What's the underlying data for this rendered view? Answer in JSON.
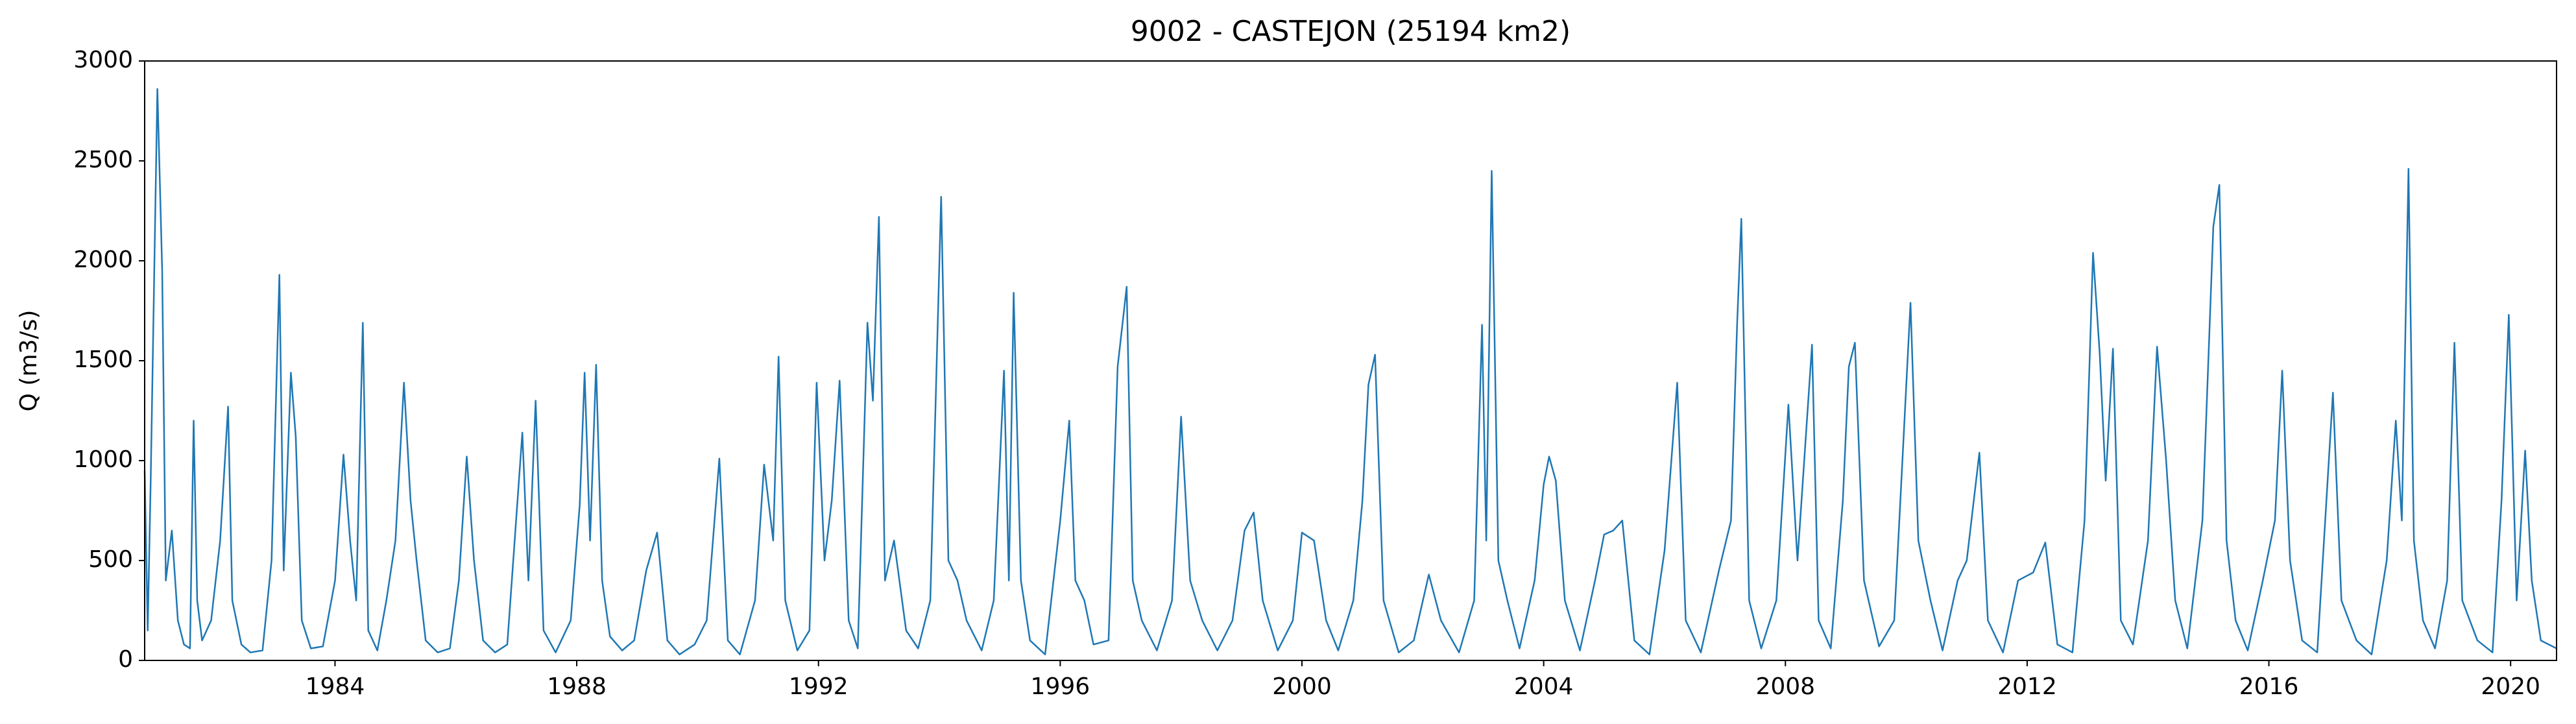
{
  "chart_data": {
    "type": "line",
    "title": "9002 - CASTEJON (25194 km2)",
    "y_label": "Q (m3/s)",
    "x": [
      1980.85,
      1980.9,
      1980.95,
      1981.06,
      1981.09,
      1981.14,
      1981.2,
      1981.3,
      1981.4,
      1981.5,
      1981.6,
      1981.66,
      1981.72,
      1981.8,
      1981.95,
      1982.1,
      1982.23,
      1982.3,
      1982.45,
      1982.6,
      1982.8,
      1982.95,
      1983.08,
      1983.15,
      1983.27,
      1983.35,
      1983.45,
      1983.6,
      1983.8,
      1984.0,
      1984.14,
      1984.25,
      1984.35,
      1984.46,
      1984.55,
      1984.7,
      1984.85,
      1985.0,
      1985.14,
      1985.25,
      1985.35,
      1985.5,
      1985.7,
      1985.9,
      1986.05,
      1986.18,
      1986.3,
      1986.45,
      1986.65,
      1986.85,
      1987.1,
      1987.2,
      1987.32,
      1987.45,
      1987.65,
      1987.9,
      1988.05,
      1988.13,
      1988.22,
      1988.32,
      1988.42,
      1988.55,
      1988.75,
      1988.95,
      1989.15,
      1989.33,
      1989.5,
      1989.7,
      1989.95,
      1990.15,
      1990.36,
      1990.5,
      1990.7,
      1990.95,
      1991.1,
      1991.25,
      1991.34,
      1991.45,
      1991.65,
      1991.85,
      1991.97,
      1992.1,
      1992.22,
      1992.35,
      1992.5,
      1992.65,
      1992.81,
      1992.9,
      1993.0,
      1993.1,
      1993.25,
      1993.45,
      1993.65,
      1993.85,
      1994.03,
      1994.15,
      1994.3,
      1994.45,
      1994.7,
      1994.9,
      1995.07,
      1995.15,
      1995.23,
      1995.35,
      1995.5,
      1995.75,
      1996.0,
      1996.15,
      1996.25,
      1996.4,
      1996.55,
      1996.8,
      1996.95,
      1997.1,
      1997.2,
      1997.35,
      1997.6,
      1997.85,
      1998.0,
      1998.15,
      1998.35,
      1998.6,
      1998.85,
      1999.05,
      1999.2,
      1999.35,
      1999.6,
      1999.85,
      2000.0,
      2000.2,
      2000.4,
      2000.6,
      2000.85,
      2001.0,
      2001.1,
      2001.21,
      2001.35,
      2001.6,
      2001.85,
      2002.1,
      2002.3,
      2002.6,
      2002.85,
      2002.98,
      2003.05,
      2003.14,
      2003.25,
      2003.4,
      2003.6,
      2003.85,
      2004.0,
      2004.09,
      2004.2,
      2004.35,
      2004.6,
      2004.85,
      2005.0,
      2005.15,
      2005.3,
      2005.5,
      2005.75,
      2006.0,
      2006.21,
      2006.35,
      2006.6,
      2006.9,
      2007.1,
      2007.2,
      2007.27,
      2007.4,
      2007.6,
      2007.85,
      2008.05,
      2008.2,
      2008.44,
      2008.55,
      2008.75,
      2008.95,
      2009.05,
      2009.15,
      2009.3,
      2009.55,
      2009.8,
      2010.07,
      2010.2,
      2010.4,
      2010.6,
      2010.85,
      2011.0,
      2011.21,
      2011.35,
      2011.6,
      2011.85,
      2012.1,
      2012.3,
      2012.5,
      2012.75,
      2012.95,
      2013.09,
      2013.2,
      2013.3,
      2013.42,
      2013.55,
      2013.75,
      2014.0,
      2014.15,
      2014.3,
      2014.45,
      2014.65,
      2014.9,
      2015.08,
      2015.18,
      2015.3,
      2015.45,
      2015.65,
      2015.9,
      2016.1,
      2016.22,
      2016.35,
      2016.55,
      2016.8,
      2017.06,
      2017.2,
      2017.45,
      2017.7,
      2017.95,
      2018.1,
      2018.2,
      2018.31,
      2018.4,
      2018.55,
      2018.75,
      2018.95,
      2019.07,
      2019.2,
      2019.45,
      2019.7,
      2019.85,
      2019.97,
      2020.1,
      2020.24,
      2020.35,
      2020.5,
      2020.76
    ],
    "values": [
      950,
      150,
      900,
      2860,
      2520,
      1950,
      400,
      650,
      200,
      80,
      60,
      1200,
      300,
      100,
      200,
      600,
      1270,
      300,
      80,
      40,
      50,
      500,
      1930,
      450,
      1440,
      1120,
      200,
      60,
      70,
      400,
      1030,
      600,
      300,
      1690,
      150,
      50,
      300,
      600,
      1390,
      800,
      500,
      100,
      40,
      60,
      400,
      1020,
      500,
      100,
      40,
      80,
      1140,
      400,
      1300,
      150,
      40,
      200,
      780,
      1440,
      600,
      1480,
      400,
      120,
      50,
      100,
      450,
      640,
      100,
      30,
      80,
      200,
      1010,
      100,
      30,
      300,
      980,
      600,
      1520,
      300,
      50,
      150,
      1390,
      500,
      800,
      1400,
      200,
      60,
      1690,
      1300,
      2220,
      400,
      600,
      150,
      60,
      300,
      2320,
      500,
      400,
      200,
      50,
      300,
      1450,
      400,
      1840,
      400,
      100,
      30,
      700,
      1200,
      400,
      300,
      80,
      100,
      1470,
      1870,
      400,
      200,
      50,
      300,
      1220,
      400,
      200,
      50,
      200,
      650,
      740,
      300,
      50,
      200,
      640,
      600,
      200,
      50,
      300,
      800,
      1380,
      1530,
      300,
      40,
      100,
      430,
      200,
      40,
      300,
      1680,
      600,
      2450,
      500,
      300,
      60,
      400,
      880,
      1020,
      900,
      300,
      50,
      400,
      630,
      650,
      700,
      100,
      30,
      550,
      1390,
      200,
      40,
      450,
      700,
      1680,
      2210,
      300,
      60,
      300,
      1280,
      500,
      1580,
      200,
      60,
      800,
      1470,
      1590,
      400,
      70,
      200,
      1790,
      600,
      300,
      50,
      400,
      500,
      1040,
      200,
      40,
      400,
      440,
      590,
      80,
      40,
      700,
      2040,
      1540,
      900,
      1560,
      200,
      80,
      600,
      1570,
      1000,
      300,
      60,
      700,
      2170,
      2380,
      600,
      200,
      50,
      400,
      700,
      1450,
      500,
      100,
      40,
      1340,
      300,
      100,
      30,
      500,
      1200,
      700,
      2460,
      600,
      200,
      60,
      400,
      1590,
      300,
      100,
      40,
      800,
      1730,
      300,
      1050,
      400,
      100,
      60
    ],
    "color": "#1f77b4",
    "xlim": [
      1980.85,
      2020.76
    ],
    "xticks": [
      1984,
      1988,
      1992,
      1996,
      2000,
      2004,
      2008,
      2012,
      2016,
      2020
    ],
    "ylim": [
      0,
      3000
    ],
    "yticks": [
      0,
      500,
      1000,
      1500,
      2000,
      2500,
      3000
    ]
  }
}
